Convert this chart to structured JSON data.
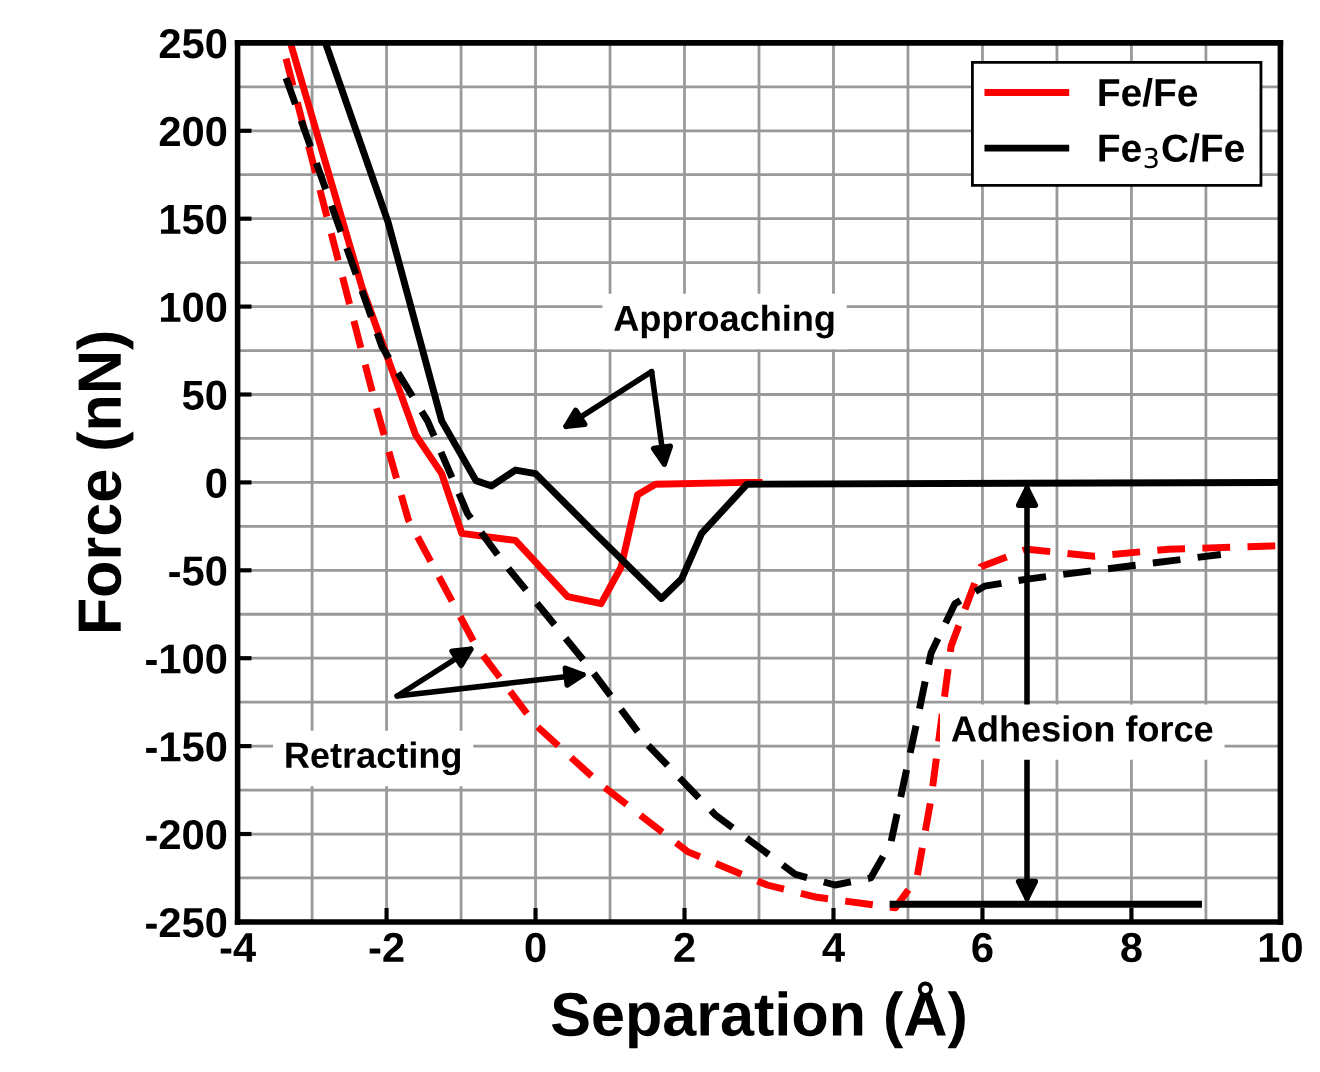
{
  "chart_data": {
    "type": "line",
    "xlabel": "Separation (Å)",
    "ylabel": "Force (nN)",
    "xlim": [
      -4,
      10
    ],
    "ylim": [
      -250,
      250
    ],
    "xticks": [
      -4,
      -2,
      0,
      2,
      4,
      6,
      8,
      10
    ],
    "yticks": [
      -250,
      -200,
      -150,
      -100,
      -50,
      0,
      50,
      100,
      150,
      200,
      250
    ],
    "grid": true,
    "legend": "top right",
    "series": [
      {
        "name": "Fe/Fe",
        "color": "#ff0000",
        "line_style": "solid",
        "x": [
          -3.27,
          -2.33,
          -1.61,
          -1.26,
          -0.99,
          -0.27,
          0.43,
          0.88,
          1.15,
          1.37,
          1.61,
          2.84,
          3.0
        ],
        "values": [
          247,
          111,
          27,
          5,
          -29,
          -33,
          -65,
          -69,
          -48,
          -7,
          -1,
          0,
          0
        ]
      },
      {
        "name": "Fe$_{3}$C/Fe",
        "color": "#000000",
        "line_style": "solid",
        "x": [
          -2.82,
          -1.98,
          -1.26,
          -0.8,
          -0.59,
          -0.27,
          0,
          0.8,
          1.69,
          1.96,
          2.23,
          2.84,
          10
        ],
        "values": [
          250,
          148,
          35,
          1,
          -2,
          7,
          5,
          -29,
          -66,
          -55,
          -29,
          -1,
          0
        ]
      },
      {
        "color": "#ff0000",
        "line_style": "dashed",
        "x": [
          -3.35,
          -2.14,
          -1.71,
          -0.8,
          0,
          0.88,
          2.04,
          3.11,
          3.78,
          4.83,
          5.12,
          5.31,
          5.58,
          5.98,
          6.6,
          7.5,
          8.5,
          10
        ],
        "values": [
          241,
          43,
          -21,
          -93,
          -138,
          -172,
          -210,
          -229,
          -236,
          -242,
          -225,
          -180,
          -93,
          -48,
          -38,
          -42,
          -38,
          -36
        ]
      },
      {
        "color": "#000000",
        "line_style": "dashed",
        "x": [
          -3.35,
          -2.06,
          -1.45,
          -0.91,
          -0.46,
          0.7,
          1.5,
          2.41,
          3.49,
          4.02,
          4.5,
          4.77,
          5.09,
          5.31,
          5.63,
          6.03,
          6.6,
          7.14,
          9.2
        ],
        "values": [
          230,
          77,
          35,
          -18,
          -44,
          -104,
          -149,
          -189,
          -223,
          -229,
          -225,
          -205,
          -142,
          -97,
          -69,
          -59,
          -55,
          -52,
          -41
        ]
      },
      {
        "color": "#000000",
        "line_style": "solid",
        "x": [
          4.8,
          8.9
        ],
        "values": [
          -240,
          -240
        ]
      }
    ],
    "annotations": [
      "Approaching",
      {
        "text": "Retracting",
        "x": -0.8,
        "y": -93
      },
      "Adhesion force"
    ]
  }
}
